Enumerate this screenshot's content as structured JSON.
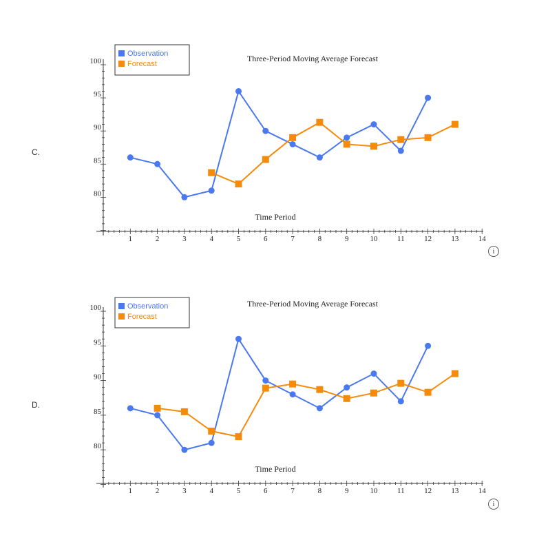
{
  "colors": {
    "observation": "#4a78ef",
    "forecast": "#f58a0b",
    "axis": "#333333",
    "text": "#222222"
  },
  "chart_data": [
    {
      "option": "C.",
      "type": "line",
      "title": "Three-Period Moving Average Forecast",
      "xlabel": "Time Period",
      "ylabel": "",
      "xlim": [
        0,
        14
      ],
      "ylim": [
        75,
        100
      ],
      "x_ticks": [
        1,
        2,
        3,
        4,
        5,
        6,
        7,
        8,
        9,
        10,
        11,
        12,
        13,
        14
      ],
      "y_ticks": [
        80,
        85,
        90,
        95,
        100
      ],
      "legend": [
        "Observation",
        "Forecast"
      ],
      "legend_position": "top-left",
      "series": [
        {
          "name": "Observation",
          "marker": "circle",
          "x": [
            1,
            2,
            3,
            4,
            5,
            6,
            7,
            8,
            9,
            10,
            11,
            12
          ],
          "values": [
            86,
            85,
            80,
            81,
            96,
            90,
            88,
            86,
            89,
            91,
            87,
            95
          ]
        },
        {
          "name": "Forecast",
          "marker": "square",
          "x": [
            4,
            5,
            6,
            7,
            8,
            9,
            10,
            11,
            12,
            13
          ],
          "values": [
            83.7,
            82,
            85.7,
            89,
            91.3,
            88,
            87.7,
            88.7,
            89,
            91
          ]
        }
      ],
      "info_icon": "i"
    },
    {
      "option": "D.",
      "type": "line",
      "title": "Three-Period Moving Average Forecast",
      "xlabel": "Time Period",
      "ylabel": "",
      "xlim": [
        0,
        14
      ],
      "ylim": [
        75,
        100
      ],
      "x_ticks": [
        1,
        2,
        3,
        4,
        5,
        6,
        7,
        8,
        9,
        10,
        11,
        12,
        13,
        14
      ],
      "y_ticks": [
        80,
        85,
        90,
        95,
        100
      ],
      "legend": [
        "Observation",
        "Forecast"
      ],
      "legend_position": "top-left",
      "series": [
        {
          "name": "Observation",
          "marker": "circle",
          "x": [
            1,
            2,
            3,
            4,
            5,
            6,
            7,
            8,
            9,
            10,
            11,
            12
          ],
          "values": [
            86,
            85,
            80,
            81,
            96,
            90,
            88,
            86,
            89,
            91,
            87,
            95
          ]
        },
        {
          "name": "Forecast",
          "marker": "square",
          "x": [
            2,
            3,
            4,
            5,
            6,
            7,
            8,
            9,
            10,
            11,
            12,
            13
          ],
          "values": [
            86,
            85.5,
            82.7,
            81.9,
            88.9,
            89.5,
            88.7,
            87.4,
            88.2,
            89.6,
            88.3,
            91
          ]
        }
      ],
      "info_icon": "i"
    }
  ]
}
